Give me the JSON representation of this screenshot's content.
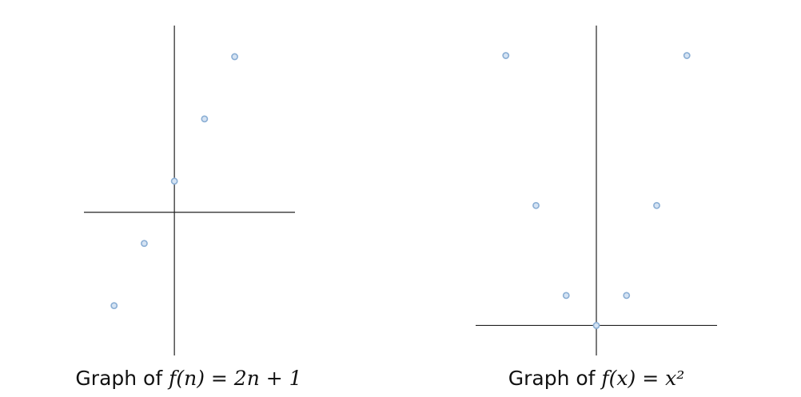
{
  "chart_data": [
    {
      "type": "scatter",
      "caption_prefix": "Graph of ",
      "caption_math": "f(n) = 2n + 1",
      "x": [
        -2,
        -1,
        0,
        1,
        2
      ],
      "y": [
        -3,
        -1,
        1,
        3,
        5
      ],
      "xlim": [
        -3,
        4
      ],
      "ylim": [
        -4.6,
        6
      ],
      "grid": false,
      "colors": {
        "point_fill": "#d5e3f3",
        "point_stroke": "#8aaed4",
        "axis": "#222222"
      }
    },
    {
      "type": "scatter",
      "caption_prefix": "Graph of ",
      "caption_math": "f(x) = x²",
      "x": [
        -3,
        -2,
        -1,
        0,
        1,
        2,
        3
      ],
      "y": [
        9,
        4,
        1,
        0,
        1,
        4,
        9
      ],
      "xlim": [
        -4,
        4
      ],
      "ylim": [
        -1,
        10
      ],
      "grid": false,
      "colors": {
        "point_fill": "#d5e3f3",
        "point_stroke": "#8aaed4",
        "axis": "#222222"
      }
    }
  ]
}
